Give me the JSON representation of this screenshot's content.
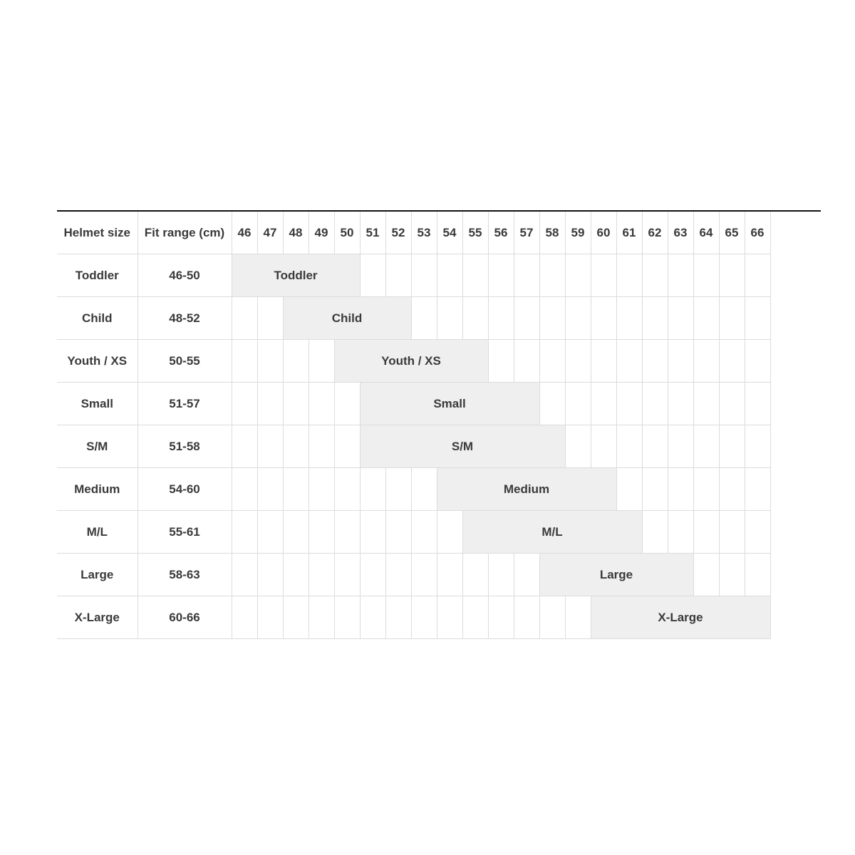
{
  "table": {
    "columns": [
      "Helmet size",
      "Fit range (cm)",
      "46",
      "47",
      "48",
      "49",
      "50",
      "51",
      "52",
      "53",
      "54",
      "55",
      "56",
      "57",
      "58",
      "59",
      "60",
      "61",
      "62",
      "63",
      "64",
      "65",
      "66"
    ],
    "rows": [
      {
        "name": "Toddler",
        "range": "46-50"
      },
      {
        "name": "Child",
        "range": "48-52"
      },
      {
        "name": "Youth / XS",
        "range": "50-55"
      },
      {
        "name": "Small",
        "range": "51-57"
      },
      {
        "name": "S/M",
        "range": "51-58"
      },
      {
        "name": "Medium",
        "range": "54-60"
      },
      {
        "name": "M/L",
        "range": "55-61"
      },
      {
        "name": "Large",
        "range": "58-63"
      },
      {
        "name": "X-Large",
        "range": "60-66"
      }
    ]
  }
}
